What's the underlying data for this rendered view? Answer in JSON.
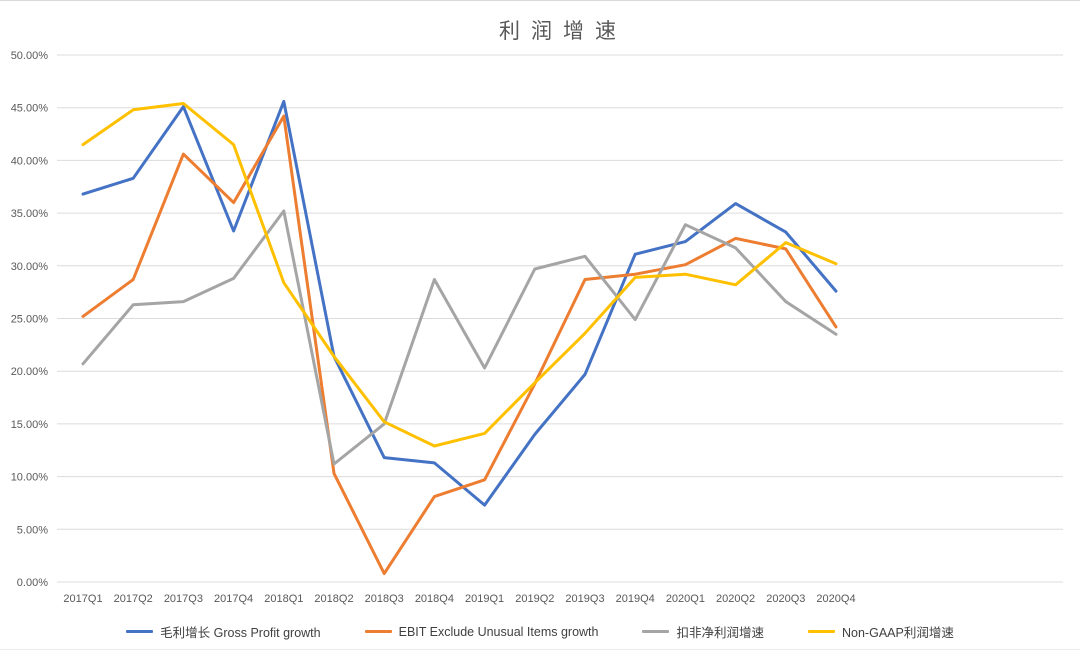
{
  "chart_data": {
    "type": "line",
    "title": "利润增速",
    "categories": [
      "2017Q1",
      "2017Q2",
      "2017Q3",
      "2017Q4",
      "2018Q1",
      "2018Q2",
      "2018Q3",
      "2018Q4",
      "2019Q1",
      "2019Q2",
      "2019Q3",
      "2019Q4",
      "2020Q1",
      "2020Q2",
      "2020Q3",
      "2020Q4"
    ],
    "y_ticks": [
      "0.00%",
      "5.00%",
      "10.00%",
      "15.00%",
      "20.00%",
      "25.00%",
      "30.00%",
      "35.00%",
      "40.00%",
      "45.00%",
      "50.00%"
    ],
    "y_axis": {
      "min": 0,
      "max": 50,
      "step": 5,
      "unit": "%"
    },
    "grid": true,
    "legend_position": "bottom",
    "colors": {
      "grid": "#dcdcdc",
      "axis_text": "#595959",
      "title_text": "#595959",
      "legend_text": "#404040"
    },
    "series": [
      {
        "name": "毛利增长 Gross Profit growth",
        "color": "#4472C4",
        "values": [
          36.8,
          38.3,
          45.1,
          33.3,
          45.6,
          21.4,
          11.8,
          11.3,
          7.3,
          14.0,
          19.7,
          31.1,
          32.3,
          35.9,
          33.2,
          27.6
        ]
      },
      {
        "name": "EBIT Exclude Unusual Items growth",
        "color": "#ED7D31",
        "values": [
          25.2,
          28.7,
          40.6,
          36.0,
          44.2,
          10.3,
          0.8,
          8.1,
          9.7,
          18.8,
          28.7,
          29.2,
          30.1,
          32.6,
          31.6,
          24.2
        ]
      },
      {
        "name": "扣非净利润增速",
        "color": "#A5A5A5",
        "values": [
          20.7,
          26.3,
          26.6,
          28.8,
          35.2,
          11.2,
          15.0,
          28.7,
          20.3,
          29.7,
          30.9,
          24.9,
          33.9,
          31.7,
          26.6,
          23.5
        ]
      },
      {
        "name": "Non-GAAP利润增速",
        "color": "#FFC000",
        "values": [
          41.5,
          44.8,
          45.4,
          41.5,
          28.4,
          21.4,
          15.2,
          12.9,
          14.1,
          18.9,
          23.6,
          28.9,
          29.2,
          28.2,
          32.2,
          30.2
        ]
      }
    ]
  }
}
